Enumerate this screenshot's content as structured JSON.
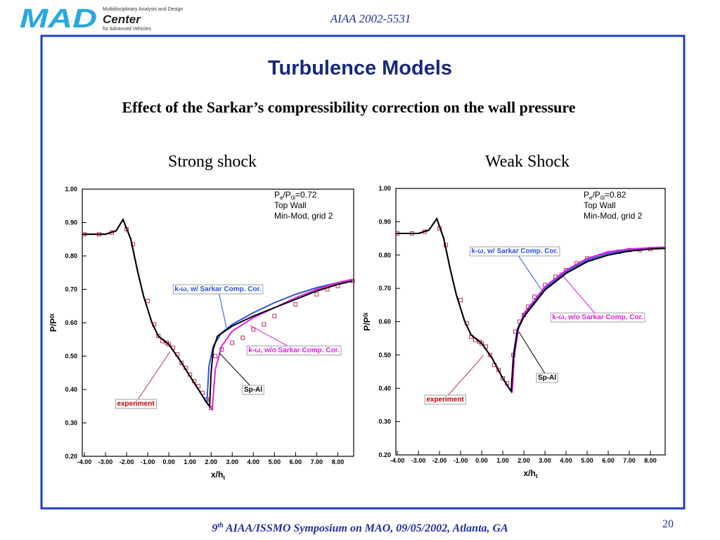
{
  "header": {
    "logo": "MAD",
    "logo_line1": "Multidisciplinary Analysis and Design",
    "logo_center": "Center",
    "logo_line2": "for Advanced Vehicles",
    "paper": "AIAA 2002-5531"
  },
  "title": "Turbulence Models",
  "subtitle": "Effect of the Sarkar’s compressibility correction on the wall pressure",
  "footer": {
    "ordinal": "9",
    "sup": "th",
    "text": " AIAA/ISSMO Symposium on MAO, 09/05/2002, Atlanta, GA",
    "page": "20"
  },
  "chart_data": [
    {
      "type": "line",
      "title": "Strong shock",
      "xlabel": "x/h",
      "xlabel_sub": "t",
      "ylabel": "P/P",
      "ylabel_sub": "0i",
      "info": [
        [
          "P",
          "e",
          "/P",
          "0i",
          "=0.72"
        ],
        "Top Wall",
        "Min-Mod, grid 2"
      ],
      "xlim": [
        -4.1,
        8.75
      ],
      "ylim": [
        0.2,
        1.0
      ],
      "xticks": [
        {
          "value": -4,
          "label": "-4.00"
        },
        {
          "value": -3,
          "label": "-3.00"
        },
        {
          "value": -2,
          "label": "-2.00"
        },
        {
          "value": -1,
          "label": "-1.00"
        },
        {
          "value": 0,
          "label": "0.00"
        },
        {
          "value": 1,
          "label": "1.00"
        },
        {
          "value": 2,
          "label": "2.00"
        },
        {
          "value": 3,
          "label": "3.00"
        },
        {
          "value": 4,
          "label": "4.00"
        },
        {
          "value": 5,
          "label": "5.00"
        },
        {
          "value": 6,
          "label": "6.00"
        },
        {
          "value": 7,
          "label": "7.00"
        },
        {
          "value": 8,
          "label": "8.00"
        }
      ],
      "yticks": [
        {
          "value": 0.2,
          "label": "0.20"
        },
        {
          "value": 0.3,
          "label": "0.30"
        },
        {
          "value": 0.4,
          "label": "0.40"
        },
        {
          "value": 0.5,
          "label": "0.50"
        },
        {
          "value": 0.6,
          "label": "0.60"
        },
        {
          "value": 0.7,
          "label": "0.70"
        },
        {
          "value": 0.8,
          "label": "0.80"
        },
        {
          "value": 0.9,
          "label": "0.90"
        },
        {
          "value": 1.0,
          "label": "1.00"
        }
      ],
      "series": [
        {
          "name": "experiment",
          "color": "#c0304a",
          "marker": "square",
          "x": [
            -4.0,
            -3.3,
            -2.7,
            -2.0,
            -1.7,
            -1.0,
            -0.7,
            -0.5,
            -0.3,
            -0.1,
            0.0,
            0.2,
            0.4,
            0.6,
            0.8,
            1.0,
            1.2,
            1.4,
            1.6,
            1.8,
            2.0,
            2.2,
            2.5,
            3.0,
            3.5,
            4.0,
            4.5,
            5.0,
            6.0,
            7.0,
            7.5,
            8.0,
            8.7
          ],
          "values": [
            0.865,
            0.865,
            0.87,
            0.88,
            0.835,
            0.665,
            0.595,
            0.56,
            0.545,
            0.54,
            0.535,
            0.525,
            0.505,
            0.48,
            0.465,
            0.445,
            0.425,
            0.41,
            0.39,
            0.37,
            0.345,
            0.5,
            0.52,
            0.54,
            0.555,
            0.58,
            0.595,
            0.62,
            0.655,
            0.685,
            0.7,
            0.71,
            0.725
          ]
        },
        {
          "name": "k-ω, w/ Sarkar Comp. Cor.",
          "color": "#3050e0",
          "x": [
            -4.1,
            -3.0,
            -2.5,
            -2.17,
            -1.8,
            -1.5,
            -1.2,
            -0.8,
            -0.5,
            0.0,
            0.5,
            1.0,
            1.5,
            1.8,
            1.9,
            2.1,
            2.5,
            3.0,
            4.0,
            5.0,
            6.0,
            7.0,
            8.0,
            8.7
          ],
          "values": [
            0.865,
            0.865,
            0.875,
            0.909,
            0.85,
            0.76,
            0.68,
            0.6,
            0.56,
            0.535,
            0.49,
            0.44,
            0.39,
            0.36,
            0.47,
            0.53,
            0.57,
            0.595,
            0.63,
            0.66,
            0.685,
            0.705,
            0.72,
            0.73
          ]
        },
        {
          "name": "k-ω, w/o Sarkar Comp. Cor.",
          "color": "#e020e0",
          "x": [
            -4.1,
            -3.0,
            -2.5,
            -2.17,
            -1.8,
            -1.5,
            -1.2,
            -0.8,
            -0.5,
            0.0,
            0.5,
            1.0,
            1.5,
            1.8,
            2.05,
            2.2,
            2.5,
            3.0,
            4.0,
            5.0,
            6.0,
            7.0,
            8.0,
            8.7
          ],
          "values": [
            0.865,
            0.865,
            0.875,
            0.909,
            0.85,
            0.76,
            0.68,
            0.6,
            0.56,
            0.535,
            0.49,
            0.44,
            0.39,
            0.36,
            0.34,
            0.46,
            0.53,
            0.575,
            0.615,
            0.645,
            0.675,
            0.7,
            0.72,
            0.73
          ]
        },
        {
          "name": "Sp-Al",
          "color": "#000000",
          "x": [
            -4.1,
            -3.0,
            -2.5,
            -2.17,
            -1.8,
            -1.5,
            -1.2,
            -0.8,
            -0.5,
            0.0,
            0.5,
            1.0,
            1.5,
            1.8,
            1.93,
            2.0,
            2.1,
            2.3,
            3.0,
            4.0,
            5.0,
            6.0,
            7.0,
            8.0,
            8.7
          ],
          "values": [
            0.865,
            0.865,
            0.875,
            0.909,
            0.85,
            0.76,
            0.68,
            0.6,
            0.56,
            0.535,
            0.49,
            0.44,
            0.39,
            0.36,
            0.35,
            0.45,
            0.52,
            0.56,
            0.59,
            0.62,
            0.645,
            0.67,
            0.695,
            0.715,
            0.725
          ]
        }
      ]
    },
    {
      "type": "line",
      "title": "Weak Shock",
      "xlabel": "x/h",
      "xlabel_sub": "t",
      "ylabel": "P/P",
      "ylabel_sub": "0i",
      "info": [
        [
          "P",
          "e",
          "/P",
          "0i",
          "=0.82"
        ],
        "Top Wall",
        "Min-Mod, grid 2"
      ],
      "xlim": [
        -4.07,
        8.7
      ],
      "ylim": [
        0.2,
        1.0
      ],
      "xticks": [
        {
          "value": -4,
          "label": "-4.00"
        },
        {
          "value": -3,
          "label": "-3.00"
        },
        {
          "value": -2,
          "label": "-2.00"
        },
        {
          "value": -1,
          "label": "-1.00"
        },
        {
          "value": 0,
          "label": "0.00"
        },
        {
          "value": 1,
          "label": "1.00"
        },
        {
          "value": 2,
          "label": "2.00"
        },
        {
          "value": 3,
          "label": "3.00"
        },
        {
          "value": 4,
          "label": "4.00"
        },
        {
          "value": 5,
          "label": "5.00"
        },
        {
          "value": 6,
          "label": "6.00"
        },
        {
          "value": 7,
          "label": "7.00"
        },
        {
          "value": 8,
          "label": "8.00"
        }
      ],
      "yticks": [
        {
          "value": 0.2,
          "label": "0.20"
        },
        {
          "value": 0.3,
          "label": "0.30"
        },
        {
          "value": 0.4,
          "label": "0.40"
        },
        {
          "value": 0.5,
          "label": "0.50"
        },
        {
          "value": 0.6,
          "label": "0.60"
        },
        {
          "value": 0.7,
          "label": "0.70"
        },
        {
          "value": 0.8,
          "label": "0.80"
        },
        {
          "value": 0.9,
          "label": "0.90"
        },
        {
          "value": 1.0,
          "label": "1.00"
        }
      ],
      "series": [
        {
          "name": "experiment",
          "color": "#c0304a",
          "marker": "square",
          "x": [
            -4.0,
            -3.3,
            -2.7,
            -2.0,
            -1.7,
            -1.0,
            -0.7,
            -0.5,
            -0.3,
            -0.1,
            0.0,
            0.2,
            0.4,
            0.6,
            0.8,
            1.0,
            1.2,
            1.5,
            1.6,
            1.8,
            2.0,
            2.2,
            2.5,
            3.0,
            3.5,
            4.0,
            4.5,
            5.0,
            6.0,
            6.5,
            7.0,
            7.5,
            8.0
          ],
          "values": [
            0.865,
            0.865,
            0.87,
            0.88,
            0.83,
            0.665,
            0.595,
            0.555,
            0.545,
            0.54,
            0.535,
            0.525,
            0.5,
            0.47,
            0.455,
            0.43,
            0.415,
            0.5,
            0.57,
            0.6,
            0.62,
            0.645,
            0.675,
            0.71,
            0.735,
            0.755,
            0.775,
            0.79,
            0.805,
            0.81,
            0.815,
            0.815,
            0.818
          ]
        },
        {
          "name": "k-ω, w/ Sarkar Comp. Cor.",
          "color": "#3050e0",
          "x": [
            -4.07,
            -3.0,
            -2.5,
            -2.13,
            -1.8,
            -1.5,
            -1.2,
            -0.8,
            -0.5,
            0.0,
            0.5,
            1.0,
            1.3,
            1.4,
            1.5,
            1.7,
            2.0,
            2.5,
            3.0,
            4.0,
            5.0,
            6.0,
            7.0,
            8.0,
            8.7
          ],
          "values": [
            0.865,
            0.865,
            0.875,
            0.909,
            0.85,
            0.76,
            0.68,
            0.6,
            0.56,
            0.535,
            0.49,
            0.43,
            0.4,
            0.39,
            0.5,
            0.58,
            0.62,
            0.66,
            0.7,
            0.75,
            0.785,
            0.805,
            0.815,
            0.82,
            0.822
          ]
        },
        {
          "name": "k-ω, w/o Sarkar Comp. Cor.",
          "color": "#e020e0",
          "x": [
            -4.07,
            -3.0,
            -2.5,
            -2.13,
            -1.8,
            -1.5,
            -1.2,
            -0.8,
            -0.5,
            0.0,
            0.5,
            1.0,
            1.3,
            1.45,
            1.55,
            1.75,
            2.0,
            2.5,
            3.0,
            4.0,
            5.0,
            6.0,
            7.0,
            8.0,
            8.7
          ],
          "values": [
            0.865,
            0.865,
            0.875,
            0.909,
            0.85,
            0.76,
            0.68,
            0.6,
            0.56,
            0.535,
            0.49,
            0.43,
            0.4,
            0.39,
            0.5,
            0.58,
            0.625,
            0.665,
            0.705,
            0.755,
            0.79,
            0.81,
            0.818,
            0.822,
            0.824
          ]
        },
        {
          "name": "Sp-Al",
          "color": "#000000",
          "x": [
            -4.07,
            -3.0,
            -2.5,
            -2.13,
            -1.8,
            -1.5,
            -1.2,
            -0.8,
            -0.5,
            0.0,
            0.5,
            1.0,
            1.3,
            1.4,
            1.5,
            1.7,
            2.0,
            2.5,
            3.0,
            4.0,
            5.0,
            6.0,
            7.0,
            8.0,
            8.7
          ],
          "values": [
            0.865,
            0.865,
            0.875,
            0.909,
            0.85,
            0.76,
            0.68,
            0.6,
            0.56,
            0.535,
            0.49,
            0.43,
            0.4,
            0.392,
            0.49,
            0.575,
            0.615,
            0.655,
            0.695,
            0.745,
            0.78,
            0.8,
            0.812,
            0.818,
            0.82
          ]
        }
      ]
    }
  ]
}
